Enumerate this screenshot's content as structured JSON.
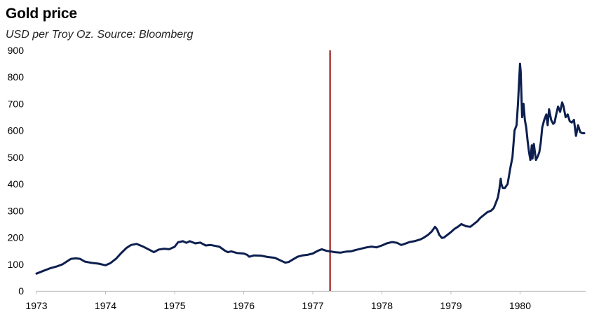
{
  "chart_data": {
    "type": "line",
    "title": "Gold price",
    "subtitle": "USD per Troy Oz. Source: Bloomberg",
    "xlabel": "",
    "ylabel": "",
    "xlim": [
      1973.0,
      1980.95
    ],
    "ylim": [
      0,
      900
    ],
    "yticks": [
      "0",
      "100",
      "200",
      "300",
      "400",
      "500",
      "600",
      "700",
      "800",
      "900"
    ],
    "xticks": [
      "1973",
      "1974",
      "1975",
      "1976",
      "1977",
      "1978",
      "1979",
      "1980"
    ],
    "grid": false,
    "legend": "none",
    "colors": {
      "series": "#0d1f4f",
      "marker": "#8b0000",
      "axis": "#bfbfbf"
    },
    "marker_line_x": 1977.25,
    "series": [
      {
        "name": "",
        "points": [
          [
            1973.0,
            65
          ],
          [
            1973.1,
            75
          ],
          [
            1973.2,
            85
          ],
          [
            1973.3,
            92
          ],
          [
            1973.38,
            100
          ],
          [
            1973.45,
            112
          ],
          [
            1973.5,
            120
          ],
          [
            1973.57,
            122
          ],
          [
            1973.63,
            120
          ],
          [
            1973.7,
            110
          ],
          [
            1973.8,
            105
          ],
          [
            1973.9,
            102
          ],
          [
            1974.0,
            96
          ],
          [
            1974.07,
            104
          ],
          [
            1974.15,
            120
          ],
          [
            1974.22,
            140
          ],
          [
            1974.3,
            160
          ],
          [
            1974.37,
            172
          ],
          [
            1974.45,
            176
          ],
          [
            1974.55,
            165
          ],
          [
            1974.65,
            152
          ],
          [
            1974.7,
            145
          ],
          [
            1974.77,
            155
          ],
          [
            1974.85,
            158
          ],
          [
            1974.92,
            156
          ],
          [
            1975.0,
            165
          ],
          [
            1975.05,
            182
          ],
          [
            1975.12,
            186
          ],
          [
            1975.17,
            180
          ],
          [
            1975.22,
            186
          ],
          [
            1975.3,
            178
          ],
          [
            1975.37,
            181
          ],
          [
            1975.45,
            170
          ],
          [
            1975.52,
            172
          ],
          [
            1975.6,
            168
          ],
          [
            1975.65,
            165
          ],
          [
            1975.72,
            152
          ],
          [
            1975.77,
            145
          ],
          [
            1975.82,
            148
          ],
          [
            1975.9,
            142
          ],
          [
            1976.0,
            140
          ],
          [
            1976.05,
            135
          ],
          [
            1976.08,
            128
          ],
          [
            1976.15,
            133
          ],
          [
            1976.25,
            132
          ],
          [
            1976.35,
            127
          ],
          [
            1976.45,
            124
          ],
          [
            1976.5,
            118
          ],
          [
            1976.55,
            112
          ],
          [
            1976.6,
            106
          ],
          [
            1976.65,
            108
          ],
          [
            1976.7,
            116
          ],
          [
            1976.78,
            128
          ],
          [
            1976.85,
            133
          ],
          [
            1976.92,
            135
          ],
          [
            1977.0,
            140
          ],
          [
            1977.07,
            150
          ],
          [
            1977.13,
            156
          ],
          [
            1977.2,
            150
          ],
          [
            1977.25,
            148
          ],
          [
            1977.32,
            145
          ],
          [
            1977.4,
            143
          ],
          [
            1977.48,
            147
          ],
          [
            1977.55,
            148
          ],
          [
            1977.62,
            153
          ],
          [
            1977.7,
            158
          ],
          [
            1977.78,
            163
          ],
          [
            1977.85,
            166
          ],
          [
            1977.92,
            163
          ],
          [
            1978.0,
            170
          ],
          [
            1978.07,
            178
          ],
          [
            1978.15,
            183
          ],
          [
            1978.22,
            180
          ],
          [
            1978.28,
            172
          ],
          [
            1978.33,
            176
          ],
          [
            1978.4,
            183
          ],
          [
            1978.47,
            186
          ],
          [
            1978.55,
            192
          ],
          [
            1978.6,
            198
          ],
          [
            1978.67,
            210
          ],
          [
            1978.72,
            222
          ],
          [
            1978.77,
            240
          ],
          [
            1978.8,
            230
          ],
          [
            1978.83,
            210
          ],
          [
            1978.87,
            198
          ],
          [
            1978.9,
            200
          ],
          [
            1978.95,
            210
          ],
          [
            1979.0,
            220
          ],
          [
            1979.05,
            232
          ],
          [
            1979.1,
            240
          ],
          [
            1979.15,
            250
          ],
          [
            1979.22,
            242
          ],
          [
            1979.28,
            240
          ],
          [
            1979.32,
            248
          ],
          [
            1979.38,
            260
          ],
          [
            1979.42,
            272
          ],
          [
            1979.48,
            285
          ],
          [
            1979.53,
            295
          ],
          [
            1979.58,
            300
          ],
          [
            1979.62,
            310
          ],
          [
            1979.65,
            330
          ],
          [
            1979.68,
            350
          ],
          [
            1979.7,
            380
          ],
          [
            1979.72,
            420
          ],
          [
            1979.73,
            400
          ],
          [
            1979.75,
            385
          ],
          [
            1979.78,
            385
          ],
          [
            1979.82,
            400
          ],
          [
            1979.86,
            460
          ],
          [
            1979.89,
            500
          ],
          [
            1979.92,
            600
          ],
          [
            1979.95,
            620
          ],
          [
            1979.97,
            700
          ],
          [
            1980.0,
            850
          ],
          [
            1980.01,
            820
          ],
          [
            1980.03,
            650
          ],
          [
            1980.05,
            700
          ],
          [
            1980.07,
            640
          ],
          [
            1980.09,
            610
          ],
          [
            1980.11,
            560
          ],
          [
            1980.13,
            520
          ],
          [
            1980.15,
            490
          ],
          [
            1980.17,
            545
          ],
          [
            1980.18,
            495
          ],
          [
            1980.2,
            550
          ],
          [
            1980.23,
            490
          ],
          [
            1980.26,
            505
          ],
          [
            1980.28,
            520
          ],
          [
            1980.3,
            555
          ],
          [
            1980.32,
            610
          ],
          [
            1980.35,
            640
          ],
          [
            1980.38,
            660
          ],
          [
            1980.4,
            620
          ],
          [
            1980.42,
            680
          ],
          [
            1980.45,
            640
          ],
          [
            1980.48,
            625
          ],
          [
            1980.5,
            630
          ],
          [
            1980.52,
            655
          ],
          [
            1980.55,
            690
          ],
          [
            1980.58,
            670
          ],
          [
            1980.61,
            705
          ],
          [
            1980.63,
            690
          ],
          [
            1980.66,
            650
          ],
          [
            1980.69,
            660
          ],
          [
            1980.72,
            635
          ],
          [
            1980.75,
            630
          ],
          [
            1980.78,
            640
          ],
          [
            1980.81,
            580
          ],
          [
            1980.84,
            620
          ],
          [
            1980.87,
            595
          ],
          [
            1980.9,
            590
          ],
          [
            1980.93,
            590
          ]
        ]
      }
    ]
  }
}
